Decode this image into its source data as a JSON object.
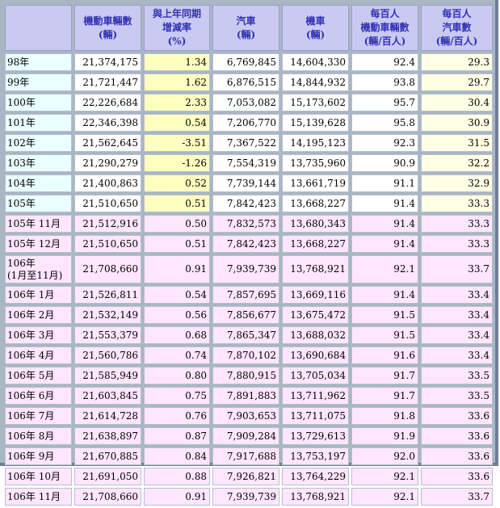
{
  "columns": [
    {
      "label": "",
      "lines": []
    },
    {
      "lines": [
        "機動車輛數",
        "(輛)"
      ]
    },
    {
      "lines": [
        "與上年同期",
        "增減率",
        "(%)"
      ]
    },
    {
      "lines": [
        "汽車",
        "(輛)"
      ]
    },
    {
      "lines": [
        "機車",
        "(輛)"
      ]
    },
    {
      "lines": [
        "每百人",
        "機動車輛數",
        "(輛/百人)"
      ]
    },
    {
      "lines": [
        "每百人",
        "汽車數",
        "(輛/百人)"
      ]
    }
  ],
  "rows": [
    {
      "kind": "y",
      "period": [
        "98年"
      ],
      "values": [
        "21,374,175",
        "1.34",
        "6,769,845",
        "14,604,330",
        "92.4",
        "29.3"
      ]
    },
    {
      "kind": "y",
      "period": [
        "99年"
      ],
      "values": [
        "21,721,447",
        "1.62",
        "6,876,515",
        "14,844,932",
        "93.8",
        "29.7"
      ]
    },
    {
      "kind": "y",
      "period": [
        "100年"
      ],
      "values": [
        "22,226,684",
        "2.33",
        "7,053,082",
        "15,173,602",
        "95.7",
        "30.4"
      ]
    },
    {
      "kind": "y",
      "period": [
        "101年"
      ],
      "values": [
        "22,346,398",
        "0.54",
        "7,206,770",
        "15,139,628",
        "95.8",
        "30.9"
      ]
    },
    {
      "kind": "y",
      "period": [
        "102年"
      ],
      "values": [
        "21,562,645",
        "-3.51",
        "7,367,522",
        "14,195,123",
        "92.3",
        "31.5"
      ]
    },
    {
      "kind": "y",
      "period": [
        "103年"
      ],
      "values": [
        "21,290,279",
        "-1.26",
        "7,554,319",
        "13,735,960",
        "90.9",
        "32.2"
      ]
    },
    {
      "kind": "y",
      "period": [
        "104年"
      ],
      "values": [
        "21,400,863",
        "0.52",
        "7,739,144",
        "13,661,719",
        "91.1",
        "32.9"
      ]
    },
    {
      "kind": "y",
      "period": [
        "105年"
      ],
      "values": [
        "21,510,650",
        "0.51",
        "7,842,423",
        "13,668,227",
        "91.4",
        "33.3"
      ]
    },
    {
      "kind": "m",
      "period": [
        "105年 11月"
      ],
      "values": [
        "21,512,916",
        "0.50",
        "7,832,573",
        "13,680,343",
        "91.4",
        "33.3"
      ]
    },
    {
      "kind": "m",
      "period": [
        "105年 12月"
      ],
      "values": [
        "21,510,650",
        "0.51",
        "7,842,423",
        "13,668,227",
        "91.4",
        "33.3"
      ]
    },
    {
      "kind": "m",
      "period": [
        "106年",
        "(1月至11月)"
      ],
      "values": [
        "21,708,660",
        "0.91",
        "7,939,739",
        "13,768,921",
        "92.1",
        "33.7"
      ]
    },
    {
      "kind": "m",
      "period": [
        "106年 1月"
      ],
      "values": [
        "21,526,811",
        "0.54",
        "7,857,695",
        "13,669,116",
        "91.4",
        "33.4"
      ]
    },
    {
      "kind": "m",
      "period": [
        "106年 2月"
      ],
      "values": [
        "21,532,149",
        "0.56",
        "7,856,677",
        "13,675,472",
        "91.5",
        "33.4"
      ]
    },
    {
      "kind": "m",
      "period": [
        "106年 3月"
      ],
      "values": [
        "21,553,379",
        "0.68",
        "7,865,347",
        "13,688,032",
        "91.5",
        "33.4"
      ]
    },
    {
      "kind": "m",
      "period": [
        "106年 4月"
      ],
      "values": [
        "21,560,786",
        "0.74",
        "7,870,102",
        "13,690,684",
        "91.6",
        "33.4"
      ]
    },
    {
      "kind": "m",
      "period": [
        "106年 5月"
      ],
      "values": [
        "21,585,949",
        "0.80",
        "7,880,915",
        "13,705,034",
        "91.7",
        "33.5"
      ]
    },
    {
      "kind": "m",
      "period": [
        "106年 6月"
      ],
      "values": [
        "21,603,845",
        "0.75",
        "7,891,883",
        "13,711,962",
        "91.7",
        "33.5"
      ]
    },
    {
      "kind": "m",
      "period": [
        "106年 7月"
      ],
      "values": [
        "21,614,728",
        "0.76",
        "7,903,653",
        "13,711,075",
        "91.8",
        "33.6"
      ]
    },
    {
      "kind": "m",
      "period": [
        "106年 8月"
      ],
      "values": [
        "21,638,897",
        "0.87",
        "7,909,284",
        "13,729,613",
        "91.9",
        "33.6"
      ]
    },
    {
      "kind": "m",
      "period": [
        "106年 9月"
      ],
      "values": [
        "21,670,885",
        "0.84",
        "7,917,688",
        "13,753,197",
        "92.0",
        "33.6"
      ]
    },
    {
      "kind": "m",
      "period": [
        "106年 10月"
      ],
      "values": [
        "21,691,050",
        "0.88",
        "7,926,821",
        "13,764,229",
        "92.1",
        "33.6"
      ]
    },
    {
      "kind": "m",
      "period": [
        "106年 11月"
      ],
      "values": [
        "21,708,660",
        "0.91",
        "7,939,739",
        "13,768,921",
        "92.1",
        "33.7"
      ]
    }
  ]
}
